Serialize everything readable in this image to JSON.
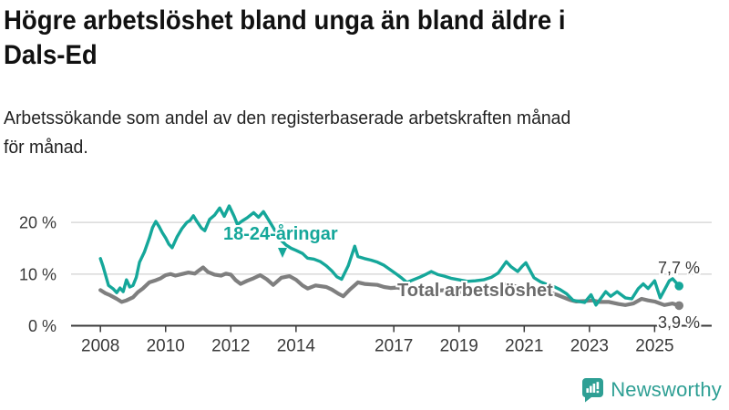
{
  "chart_data": {
    "type": "line",
    "title": "Högre arbetslöshet bland unga än bland äldre i\nDals-Ed",
    "subtitle": "Arbetssökande som andel av den registerbaserade arbetskraften månad\nför månad.",
    "xlabel": "",
    "ylabel": "",
    "grid": "horizontal-lines-at-y-ticks",
    "legend_position": "labels-on-chart",
    "xlim": [
      2007.1,
      2026.75
    ],
    "ylim": [
      0,
      25.5
    ],
    "x_ticks": [
      {
        "value": 2008,
        "label": "2008"
      },
      {
        "value": 2010,
        "label": "2010"
      },
      {
        "value": 2012,
        "label": "2012"
      },
      {
        "value": 2014,
        "label": "2014"
      },
      {
        "value": 2017,
        "label": "2017"
      },
      {
        "value": 2019,
        "label": "2019"
      },
      {
        "value": 2021,
        "label": "2021"
      },
      {
        "value": 2023,
        "label": "2023"
      },
      {
        "value": 2025,
        "label": "2025"
      }
    ],
    "y_ticks": [
      {
        "value": 0,
        "label": "0 %"
      },
      {
        "value": 10,
        "label": "10 %"
      },
      {
        "value": 20,
        "label": "20 %"
      }
    ],
    "series": [
      {
        "name": "Total arbetslöshet",
        "color": "#7f7f7f",
        "label_color": "#6b6b6b",
        "end_label": "3,9 %",
        "end_value": 3.9,
        "points": [
          [
            2008.0,
            6.9
          ],
          [
            2008.15,
            6.3
          ],
          [
            2008.3,
            5.9
          ],
          [
            2008.5,
            5.2
          ],
          [
            2008.65,
            4.6
          ],
          [
            2008.8,
            4.9
          ],
          [
            2009.0,
            5.5
          ],
          [
            2009.15,
            6.5
          ],
          [
            2009.3,
            7.2
          ],
          [
            2009.5,
            8.4
          ],
          [
            2009.7,
            8.8
          ],
          [
            2009.85,
            9.2
          ],
          [
            2010.0,
            9.8
          ],
          [
            2010.15,
            10.0
          ],
          [
            2010.3,
            9.7
          ],
          [
            2010.5,
            10.0
          ],
          [
            2010.7,
            10.3
          ],
          [
            2010.9,
            10.1
          ],
          [
            2011.0,
            10.6
          ],
          [
            2011.15,
            11.3
          ],
          [
            2011.3,
            10.4
          ],
          [
            2011.5,
            9.9
          ],
          [
            2011.7,
            9.7
          ],
          [
            2011.85,
            10.1
          ],
          [
            2012.0,
            9.9
          ],
          [
            2012.15,
            8.8
          ],
          [
            2012.3,
            8.1
          ],
          [
            2012.5,
            8.7
          ],
          [
            2012.7,
            9.2
          ],
          [
            2012.9,
            9.8
          ],
          [
            2013.1,
            9.0
          ],
          [
            2013.3,
            7.9
          ],
          [
            2013.55,
            9.3
          ],
          [
            2013.8,
            9.6
          ],
          [
            2014.0,
            8.9
          ],
          [
            2014.2,
            7.8
          ],
          [
            2014.36,
            7.2
          ],
          [
            2014.6,
            7.8
          ],
          [
            2014.93,
            7.5
          ],
          [
            2015.1,
            7.0
          ],
          [
            2015.3,
            6.2
          ],
          [
            2015.45,
            5.7
          ],
          [
            2015.65,
            7.0
          ],
          [
            2015.9,
            8.4
          ],
          [
            2016.1,
            8.1
          ],
          [
            2016.3,
            8.0
          ],
          [
            2016.5,
            7.9
          ],
          [
            2016.7,
            7.5
          ],
          [
            2016.9,
            7.3
          ],
          [
            2017.1,
            7.4
          ],
          [
            2017.4,
            7.0
          ],
          [
            2017.7,
            6.8
          ],
          [
            2018.0,
            6.9
          ],
          [
            2018.3,
            6.8
          ],
          [
            2018.6,
            6.9
          ],
          [
            2018.9,
            6.6
          ],
          [
            2019.2,
            6.5
          ],
          [
            2019.5,
            6.3
          ],
          [
            2019.8,
            6.6
          ],
          [
            2020.1,
            7.3
          ],
          [
            2020.4,
            8.0
          ],
          [
            2020.7,
            7.7
          ],
          [
            2021.0,
            7.3
          ],
          [
            2021.4,
            6.9
          ],
          [
            2021.7,
            6.6
          ],
          [
            2022.0,
            6.0
          ],
          [
            2022.2,
            5.5
          ],
          [
            2022.4,
            5.0
          ],
          [
            2022.6,
            4.7
          ],
          [
            2022.9,
            4.8
          ],
          [
            2023.1,
            4.9
          ],
          [
            2023.3,
            4.6
          ],
          [
            2023.6,
            4.6
          ],
          [
            2023.9,
            4.2
          ],
          [
            2024.1,
            4.0
          ],
          [
            2024.35,
            4.3
          ],
          [
            2024.6,
            5.2
          ],
          [
            2024.8,
            4.9
          ],
          [
            2025.0,
            4.7
          ],
          [
            2025.3,
            4.0
          ],
          [
            2025.55,
            4.3
          ],
          [
            2025.75,
            3.9
          ]
        ]
      },
      {
        "name": "18-24-åringar",
        "color": "#15a79a",
        "label_color": "#15a79a",
        "end_label": "7,7 %",
        "end_value": 7.7,
        "points": [
          [
            2008.0,
            13.0
          ],
          [
            2008.08,
            11.5
          ],
          [
            2008.25,
            7.8
          ],
          [
            2008.4,
            7.1
          ],
          [
            2008.5,
            6.4
          ],
          [
            2008.6,
            7.3
          ],
          [
            2008.7,
            6.6
          ],
          [
            2008.8,
            8.9
          ],
          [
            2008.9,
            7.5
          ],
          [
            2009.0,
            7.8
          ],
          [
            2009.1,
            9.4
          ],
          [
            2009.2,
            12.3
          ],
          [
            2009.35,
            14.3
          ],
          [
            2009.5,
            17.0
          ],
          [
            2009.6,
            19.0
          ],
          [
            2009.7,
            20.2
          ],
          [
            2009.8,
            19.2
          ],
          [
            2009.9,
            18.0
          ],
          [
            2010.0,
            17.0
          ],
          [
            2010.1,
            15.8
          ],
          [
            2010.2,
            15.1
          ],
          [
            2010.35,
            17.2
          ],
          [
            2010.5,
            18.8
          ],
          [
            2010.65,
            20.0
          ],
          [
            2010.75,
            20.4
          ],
          [
            2010.85,
            21.3
          ],
          [
            2010.95,
            20.3
          ],
          [
            2011.1,
            18.9
          ],
          [
            2011.2,
            18.4
          ],
          [
            2011.35,
            20.6
          ],
          [
            2011.5,
            21.4
          ],
          [
            2011.66,
            22.8
          ],
          [
            2011.8,
            21.2
          ],
          [
            2011.95,
            23.2
          ],
          [
            2012.1,
            21.2
          ],
          [
            2012.2,
            19.6
          ],
          [
            2012.35,
            20.3
          ],
          [
            2012.5,
            20.9
          ],
          [
            2012.7,
            21.9
          ],
          [
            2012.85,
            21.0
          ],
          [
            2013.0,
            22.1
          ],
          [
            2013.15,
            20.6
          ],
          [
            2013.3,
            19.0
          ],
          [
            2013.5,
            16.8
          ],
          [
            2013.7,
            15.6
          ],
          [
            2013.85,
            15.0
          ],
          [
            2014.0,
            14.6
          ],
          [
            2014.2,
            14.0
          ],
          [
            2014.35,
            13.1
          ],
          [
            2014.55,
            12.9
          ],
          [
            2014.75,
            12.4
          ],
          [
            2014.93,
            11.6
          ],
          [
            2015.1,
            10.6
          ],
          [
            2015.25,
            9.5
          ],
          [
            2015.4,
            9.0
          ],
          [
            2015.6,
            11.6
          ],
          [
            2015.8,
            15.4
          ],
          [
            2015.9,
            13.4
          ],
          [
            2016.1,
            13.0
          ],
          [
            2016.3,
            12.7
          ],
          [
            2016.5,
            12.3
          ],
          [
            2016.7,
            11.7
          ],
          [
            2016.9,
            10.8
          ],
          [
            2017.1,
            9.9
          ],
          [
            2017.25,
            9.2
          ],
          [
            2017.4,
            8.4
          ],
          [
            2017.6,
            8.9
          ],
          [
            2017.8,
            9.4
          ],
          [
            2018.0,
            10.0
          ],
          [
            2018.15,
            10.5
          ],
          [
            2018.35,
            9.9
          ],
          [
            2018.55,
            9.6
          ],
          [
            2018.75,
            9.2
          ],
          [
            2019.0,
            8.9
          ],
          [
            2019.25,
            8.6
          ],
          [
            2019.5,
            8.7
          ],
          [
            2019.75,
            8.9
          ],
          [
            2020.0,
            9.4
          ],
          [
            2020.2,
            10.2
          ],
          [
            2020.45,
            12.4
          ],
          [
            2020.6,
            11.4
          ],
          [
            2020.8,
            10.5
          ],
          [
            2020.95,
            11.6
          ],
          [
            2021.05,
            12.2
          ],
          [
            2021.3,
            9.3
          ],
          [
            2021.5,
            8.5
          ],
          [
            2021.7,
            8.0
          ],
          [
            2021.9,
            7.6
          ],
          [
            2022.1,
            7.0
          ],
          [
            2022.3,
            6.2
          ],
          [
            2022.5,
            4.9
          ],
          [
            2022.7,
            4.7
          ],
          [
            2022.85,
            4.5
          ],
          [
            2023.05,
            6.0
          ],
          [
            2023.2,
            4.0
          ],
          [
            2023.5,
            6.6
          ],
          [
            2023.65,
            5.7
          ],
          [
            2023.85,
            6.6
          ],
          [
            2024.1,
            5.4
          ],
          [
            2024.3,
            5.2
          ],
          [
            2024.5,
            7.2
          ],
          [
            2024.65,
            8.1
          ],
          [
            2024.8,
            7.2
          ],
          [
            2025.0,
            8.7
          ],
          [
            2025.17,
            5.4
          ],
          [
            2025.45,
            8.7
          ],
          [
            2025.55,
            9.1
          ],
          [
            2025.75,
            7.7
          ]
        ]
      }
    ]
  },
  "branding": {
    "name": "Newsworthy",
    "color": "#2e9f94",
    "icon": "newsworthy-bubble-chart-icon"
  }
}
